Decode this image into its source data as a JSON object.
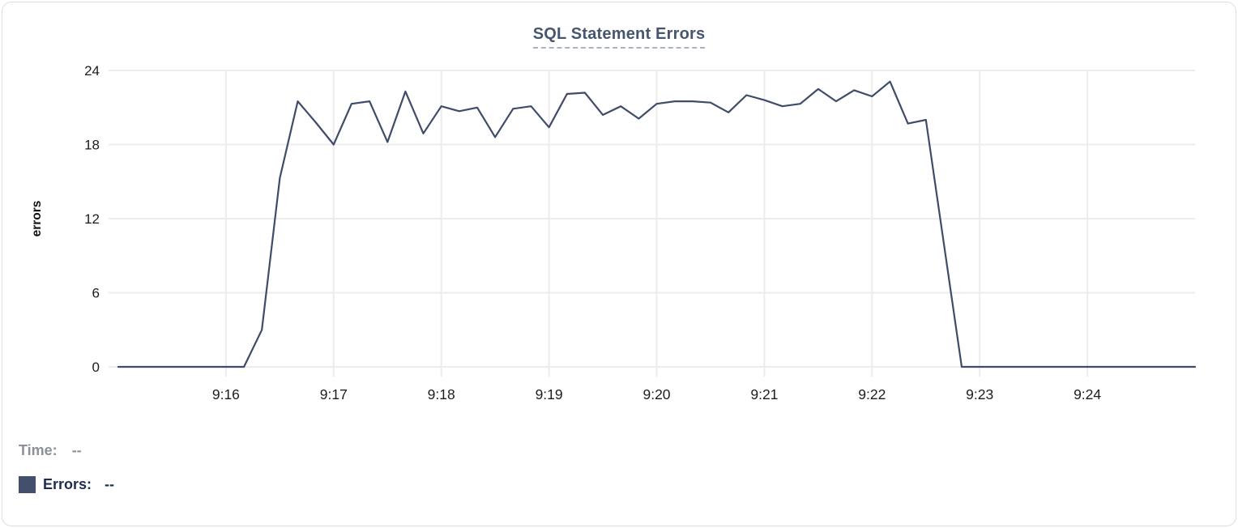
{
  "chart_data": {
    "type": "line",
    "title": "SQL Statement Errors",
    "xlabel": "",
    "ylabel": "errors",
    "ylim": [
      0,
      24
    ],
    "y_ticks": [
      0,
      6,
      12,
      18,
      24
    ],
    "x_ticks": [
      "9:16",
      "9:17",
      "9:18",
      "9:19",
      "9:20",
      "9:21",
      "9:22",
      "9:23",
      "9:24"
    ],
    "x_range": [
      "9:15:00",
      "9:25:00"
    ],
    "grid": true,
    "legend_position": "below-left",
    "line_color": "#3e4c69",
    "series": [
      {
        "name": "Errors",
        "points": [
          [
            "9:15:00",
            0
          ],
          [
            "9:15:10",
            0
          ],
          [
            "9:15:20",
            0
          ],
          [
            "9:15:30",
            0
          ],
          [
            "9:15:40",
            0
          ],
          [
            "9:15:50",
            0
          ],
          [
            "9:16:00",
            0
          ],
          [
            "9:16:10",
            0
          ],
          [
            "9:16:20",
            3
          ],
          [
            "9:16:30",
            15.3
          ],
          [
            "9:16:40",
            21.5
          ],
          [
            "9:16:50",
            19.8
          ],
          [
            "9:17:00",
            18
          ],
          [
            "9:17:10",
            21.3
          ],
          [
            "9:17:20",
            21.5
          ],
          [
            "9:17:30",
            18.2
          ],
          [
            "9:17:40",
            22.3
          ],
          [
            "9:17:50",
            18.9
          ],
          [
            "9:18:00",
            21.1
          ],
          [
            "9:18:10",
            20.7
          ],
          [
            "9:18:20",
            21
          ],
          [
            "9:18:30",
            18.6
          ],
          [
            "9:18:40",
            20.9
          ],
          [
            "9:18:50",
            21.1
          ],
          [
            "9:19:00",
            19.4
          ],
          [
            "9:19:10",
            22.1
          ],
          [
            "9:19:20",
            22.2
          ],
          [
            "9:19:30",
            20.4
          ],
          [
            "9:19:40",
            21.1
          ],
          [
            "9:19:50",
            20.1
          ],
          [
            "9:20:00",
            21.3
          ],
          [
            "9:20:10",
            21.5
          ],
          [
            "9:20:20",
            21.5
          ],
          [
            "9:20:30",
            21.4
          ],
          [
            "9:20:40",
            20.6
          ],
          [
            "9:20:50",
            22
          ],
          [
            "9:21:00",
            21.6
          ],
          [
            "9:21:10",
            21.1
          ],
          [
            "9:21:20",
            21.3
          ],
          [
            "9:21:30",
            22.5
          ],
          [
            "9:21:40",
            21.5
          ],
          [
            "9:21:50",
            22.4
          ],
          [
            "9:22:00",
            21.9
          ],
          [
            "9:22:10",
            23.1
          ],
          [
            "9:22:20",
            19.7
          ],
          [
            "9:22:30",
            20
          ],
          [
            "9:22:40",
            10
          ],
          [
            "9:22:50",
            0
          ],
          [
            "9:23:00",
            0
          ],
          [
            "9:23:10",
            0
          ],
          [
            "9:23:20",
            0
          ],
          [
            "9:23:30",
            0
          ],
          [
            "9:23:40",
            0
          ],
          [
            "9:23:50",
            0
          ],
          [
            "9:24:00",
            0
          ],
          [
            "9:24:10",
            0
          ],
          [
            "9:24:20",
            0
          ],
          [
            "9:24:30",
            0
          ],
          [
            "9:24:40",
            0
          ],
          [
            "9:24:50",
            0
          ],
          [
            "9:25:00",
            0
          ]
        ]
      }
    ]
  },
  "tooltip_legend": {
    "time_label": "Time:",
    "time_value": "--",
    "errors_label": "Errors:",
    "errors_value": "--",
    "swatch_color": "#42506b"
  },
  "colors": {
    "line": "#3e4c69",
    "grid": "#ececec",
    "tick_text": "#1d1d1f",
    "title": "#47566f",
    "title_underline": "#a8b3c9",
    "time_row": "#8b9099",
    "errors_row": "#1f2c50",
    "card_border": "#dcdee1"
  }
}
